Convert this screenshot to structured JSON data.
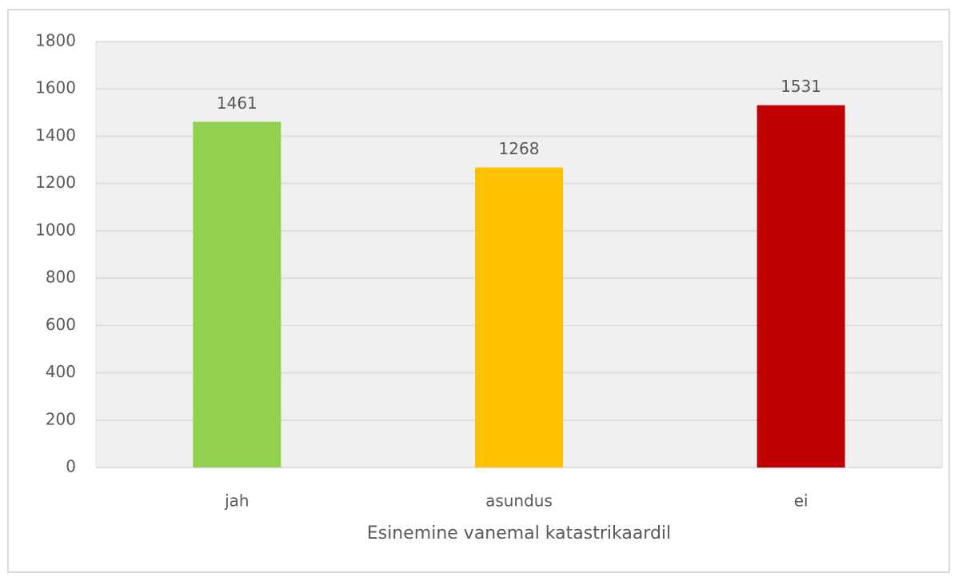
{
  "chart_data": {
    "type": "bar",
    "categories": [
      "jah",
      "asundus",
      "ei"
    ],
    "values": [
      1461,
      1268,
      1531
    ],
    "colors": [
      "#92d050",
      "#ffc000",
      "#c00000"
    ],
    "x_label": "Esinemine vanemal katastrikaardil",
    "ylim": [
      0,
      1800
    ],
    "yticks": [
      0,
      200,
      400,
      600,
      800,
      1000,
      1200,
      1400,
      1600,
      1800
    ],
    "grid": true,
    "data_labels": true
  }
}
